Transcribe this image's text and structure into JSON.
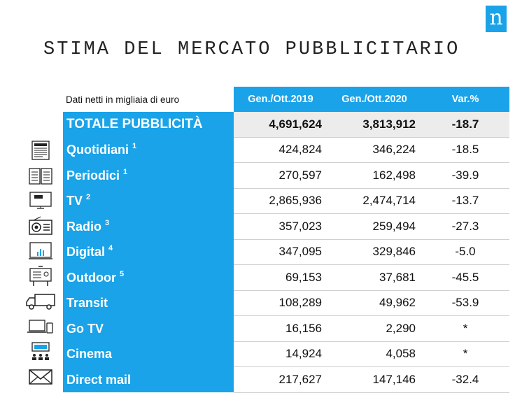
{
  "logo": "n",
  "title": "STIMA DEL MERCATO PUBBLICITARIO",
  "table": {
    "note": "Dati netti in migliaia di euro",
    "headers": [
      "Gen./Ott.2019",
      "Gen./Ott.2020",
      "Var.%"
    ],
    "total": {
      "name": "TOTALE PUBBLICITÀ",
      "v2019": "4,691,624",
      "v2020": "3,813,912",
      "var": "-18.7"
    },
    "rows": [
      {
        "name": "Quotidiani",
        "sup": "1",
        "v2019": "424,824",
        "v2020": "346,224",
        "var": "-18.5",
        "icon": "newspaper-icon"
      },
      {
        "name": "Periodici",
        "sup": "1",
        "v2019": "270,597",
        "v2020": "162,498",
        "var": "-39.9",
        "icon": "open-book-icon"
      },
      {
        "name": "TV",
        "sup": "2",
        "v2019": "2,865,936",
        "v2020": "2,474,714",
        "var": "-13.7",
        "icon": "tv-news-icon"
      },
      {
        "name": "Radio",
        "sup": "3",
        "v2019": "357,023",
        "v2020": "259,494",
        "var": "-27.3",
        "icon": "radio-icon"
      },
      {
        "name": "Digital",
        "sup": "4",
        "v2019": "347,095",
        "v2020": "329,846",
        "var": "-5.0",
        "icon": "monitor-chart-icon"
      },
      {
        "name": "Outdoor",
        "sup": "5",
        "v2019": "69,153",
        "v2020": "37,681",
        "var": "-45.5",
        "icon": "billboard-icon"
      },
      {
        "name": "Transit",
        "sup": "",
        "v2019": "108,289",
        "v2020": "49,962",
        "var": "-53.9",
        "icon": "truck-icon"
      },
      {
        "name": "Go TV",
        "sup": "",
        "v2019": "16,156",
        "v2020": "2,290",
        "var": "*",
        "icon": "devices-icon"
      },
      {
        "name": "Cinema",
        "sup": "",
        "v2019": "14,924",
        "v2020": "4,058",
        "var": "*",
        "icon": "cinema-icon"
      },
      {
        "name": "Direct mail",
        "sup": "",
        "v2019": "217,627",
        "v2020": "147,146",
        "var": "-32.4",
        "icon": "envelope-icon"
      }
    ]
  },
  "colors": {
    "accent": "#1aa3e8",
    "total_bg": "#ececec"
  }
}
